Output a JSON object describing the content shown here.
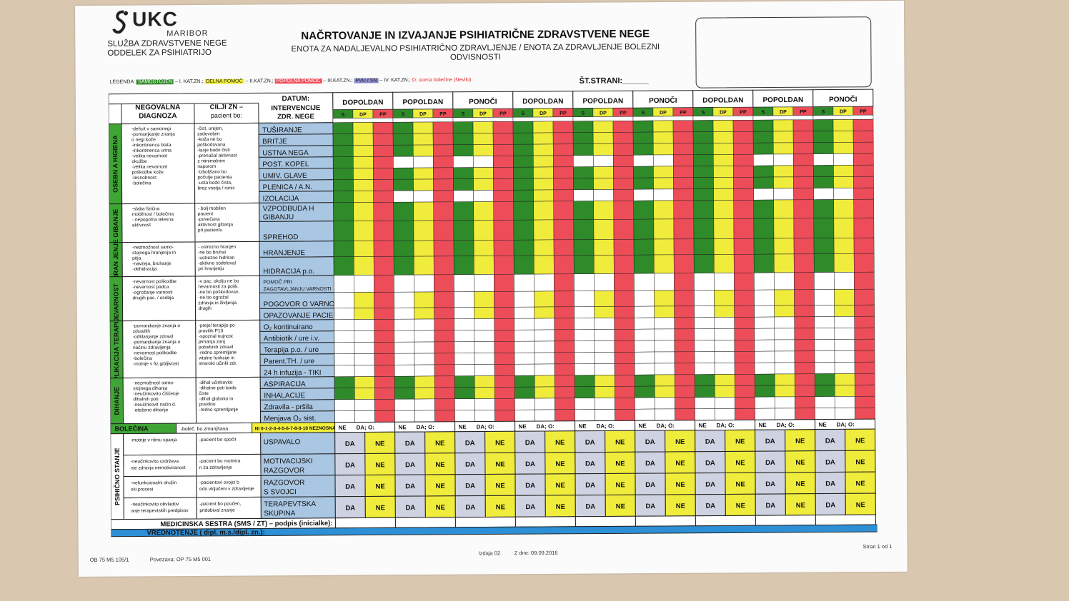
{
  "header": {
    "logo_text": "UKC",
    "logo_sub": "MARIBOR",
    "dept_line1": "SLUŽBA ZDRAVSTVENE NEGE",
    "dept_line2": "ODDELEK ZA PSIHIATRIJO",
    "title": "NAČRTOVANJE IN IZVAJANJE PSIHIATRIČNE ZDRAVSTVENE NEGE",
    "subtitle": "ENOTA ZA NADALJEVALNO PSIHIATRIČNO ZDRAVLJENJE / ENOTA ZA ZDRAVLJENJE BOLEZNI ODVISNOSTI",
    "page_label": "ŠT.STRANI:______"
  },
  "legend": {
    "prefix": "LEGENDA:",
    "items": [
      {
        "label": "SAMOSTOJEN",
        "suffix": " – I. KAT.ZN.;",
        "color": "#2f8a2a"
      },
      {
        "label": "DELNA POMOČ",
        "suffix": " – II.KAT.ZN.;",
        "color": "#f2ee3a"
      },
      {
        "label": "POPOLNA POMOČ",
        "suffix": " – III.KAT.ZN.;",
        "color": "#ee4f5a"
      },
      {
        "label": "PVU / SN",
        "suffix": " – IV. KAT.ZN.;",
        "color": "#8a8ad0"
      }
    ],
    "pain_note": "O: ocena bolečine (število)"
  },
  "colors": {
    "green": "#2f8a2a",
    "yellow": "#f0ec3c",
    "red": "#ec4d58",
    "blue": "#2d8fd6",
    "label_blue": "#a9c6e2",
    "grey": "#cfd2e0",
    "section_green": "#3fa535"
  },
  "columns": {
    "datum": "DATUM:",
    "diagnoza": "NEGOVALNA DIAGNOZA",
    "cilji": "CILJI ZN – pacient bo:",
    "intervencije": "INTERVENCIJE ZDR. NEGE",
    "shifts": [
      "DOPOLDAN",
      "POPOLDAN",
      "PONOČI",
      "DOPOLDAN",
      "POPOLDAN",
      "PONOČI",
      "DOPOLDAN",
      "POPOLDAN",
      "PONOČI"
    ],
    "subcols": [
      "S",
      "DP",
      "PP"
    ]
  },
  "sections": [
    {
      "name": "OSEBN A HIGIENA",
      "diag": "-deficit v samonegi\n-pomanjkanje znanja\n o negi kože\n-inkontinenca blata\n-inkontinenca urina\n-velika nevarnost\n okužbe\n-velika nevarnost\n poškodbe kože\n-tesnobnost\n-bolečina",
      "goals": "-čist, urejen,\n zadovoljen\n-koža ne bo\n poškodovana\n-lasje bodo čisti\n-prenašal aktivnost\n z minimalnim\n naporom\n-izboljšano bo\n počutje pacienta\n-usta bodo čista,\n brez vnetja / ranic",
      "rows": [
        "TUŠIRANJE",
        "BRITJE",
        "USTNA NEGA",
        "POST. KOPEL",
        "UMIV. GLAVE",
        "PLENICA / A.N.",
        "IZOLACIJA"
      ]
    },
    {
      "name": "GIBANJE",
      "diag": "-slaba fizična\n mobilnost / bolečina\n- nepopolna telesna\n aktivnost",
      "goals": "- bolj mobilen\n pacient\n-povečana\n aktivnost gibanja\n pri pacientu",
      "rows": [
        "VZPODBUDA H GIBANJU",
        "SPREHOD"
      ]
    },
    {
      "name": "HRAN JENJE",
      "diag": "-nezmožnost samo-\n stojnega hranjenja in\n pitja\n-navzeja, bruhanje\n-dehidracija",
      "goals": "- ustrezno hranjen\n-ne bo bruhal\n-ustrezno hidriran\n-aktivno sodeloval\n pri hranjenju",
      "rows": [
        "HRANJENJE",
        "HIDRACIJA p.o."
      ]
    },
    {
      "name": "VARNOST",
      "diag": "-nevarnost poškodbe\n-nevarnost padca\n-ogrožanje varnosti\n drugih pac. / osebja",
      "goals": "-v pac. okolju ne bo\n nevarnosti za pošk.\n-ne bo poškodovan.\n-ne bo ogrožal\n zdravja in življenja\n drugih",
      "rows": [
        "POMOČ PRI ZAGOTAVLJANJU VARNOSTI",
        "POGOVOR O VARNOSTI",
        "OPAZOVANJE PACIENTA"
      ]
    },
    {
      "name": "APLIKACIJA TERAPIJE",
      "diag": "-pomanjkanje znanja o\n zdravilih\n-odklanjanje zdravil\n-pomanjkanje znanja o\n načinu zdravljenja\n-nevarnost poškodbe\n-bolečina\n-motnje v fiz.gibljivosti",
      "goals": "-prejel terapijo po\n pravilih P10\n-spoznal nujnost\n jemanja zanj\n potrebnih zdravil\n-redno spremljane\n vitalne funkcije in\n stranski učinki zdr.",
      "rows": [
        "O₂ kontinuirano",
        "Antibiotik / ure i.v.",
        "Terapija p.o. / ure",
        "Parent.TH. / ure",
        "24 h infuzija - TIKI"
      ]
    },
    {
      "name": "DIHANJE",
      "diag": "-nezmožnost samo-\n stojnega dihanja\n-neučinkovito čiščenje\n dihalnih poti\n-neučinkovit način d.\n-oteženo dihanje",
      "goals": "-dihal učinkovito\n-dihalne poti bodo\n čiste\n-dihal globoko in\n pravilno\n-redno spremljanje",
      "rows": [
        "ASPIRACIJA",
        "INHALACIJE",
        "Zdravila - pršila",
        "Menjava O₂ sist."
      ]
    }
  ],
  "pain": {
    "label": "BOLEČINA",
    "note": "-boleč. bo zmanjšana",
    "scale": "NI 0-1-2-3-4-5-6-7-8-9-10 NEZNOSNA",
    "ne": "NE",
    "da": "DA; O:"
  },
  "psych": {
    "name": "PSIHIČNO STANJE",
    "rows": [
      {
        "diag": "-motnje v ritmu spanja",
        "goal": "-pacient bo spočit",
        "label": "USPAVALO"
      },
      {
        "diag": "-neučinkovito vzdrževanje zdravja nemotiviranost",
        "goal": "-pacient bo motiviran za zdravljenje",
        "label": "MOTIVACIJSKI RAZGOVOR"
      },
      {
        "diag": "-nefunkcionalni družinski procesi",
        "goal": "-pacientovi svojci bodo vključeni v zdravljenje",
        "label": "RAZGOVOR S SVOJCI"
      },
      {
        "diag": "-neučinkovito obvladovanje terapevtskih predpisov",
        "goal": "-pacient bo poučen, pridobival znanje",
        "label": "TERAPEVTSKA SKUPINA"
      }
    ],
    "da": "DA",
    "ne": "NE"
  },
  "signature": "MEDICINSKA SESTRA (SMS / ZT) – podpis (inicialke):",
  "evaluation": "VREDNOTENJE ( dipl. m.s./dipl. zn.):",
  "footer": {
    "left": "OB 75 M5 105/1",
    "link": "Povezava: OP 75 M5 001",
    "issue": "Izdaja 02",
    "date": "Z dne: 09.09.2016",
    "page": "Stran 1 od 1"
  }
}
